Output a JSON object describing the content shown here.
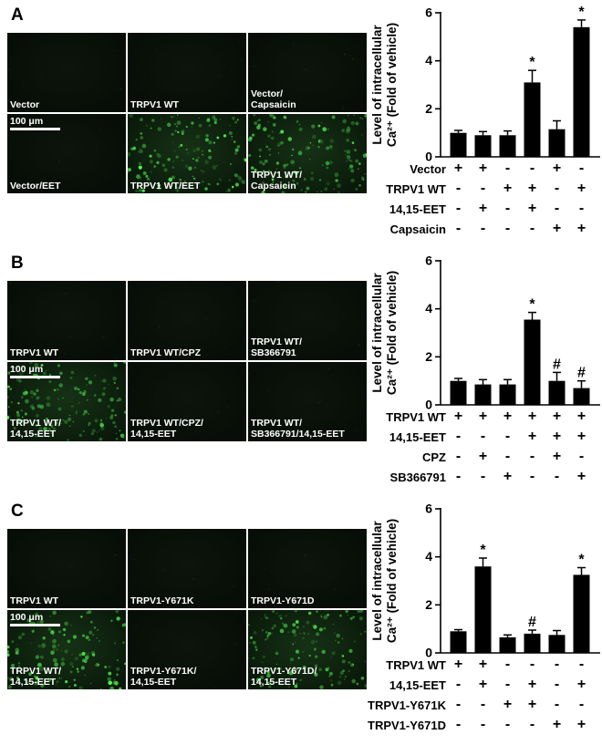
{
  "figure": {
    "panels": [
      {
        "letter": "A",
        "micrographs": [
          {
            "label": "Vector",
            "bright": false
          },
          {
            "label": "TRPV1 WT",
            "bright": false
          },
          {
            "label": "Vector/\nCapsaicin",
            "bright": false
          },
          {
            "label": "Vector/EET",
            "bright": false,
            "scalebar": "100 μm"
          },
          {
            "label": "TRPV1 WT/EET",
            "bright": true
          },
          {
            "label": "TRPV1 WT/\nCapsaicin",
            "bright": true
          }
        ],
        "chart_data": {
          "type": "bar",
          "ylabel_lines": [
            "Level of intracellular",
            "Ca²⁺ (Fold of vehicle)"
          ],
          "ylim": [
            0,
            6
          ],
          "yticks": [
            0,
            2,
            4,
            6
          ],
          "values": [
            1.0,
            0.9,
            0.9,
            3.1,
            1.15,
            5.4
          ],
          "errors": [
            0.1,
            0.15,
            0.18,
            0.5,
            0.35,
            0.3
          ],
          "sig": [
            "",
            "",
            "",
            "*",
            "",
            "*"
          ],
          "bar_color": "#000000"
        },
        "matrix": [
          {
            "label": "Vector",
            "signs": [
              "+",
              "+",
              "-",
              "-",
              "+",
              "-"
            ]
          },
          {
            "label": "TRPV1 WT",
            "signs": [
              "-",
              "-",
              "+",
              "+",
              "-",
              "+"
            ]
          },
          {
            "label": "14,15-EET",
            "signs": [
              "-",
              "+",
              "-",
              "+",
              "-",
              "-"
            ]
          },
          {
            "label": "Capsaicin",
            "signs": [
              "-",
              "-",
              "-",
              "-",
              "+",
              "+"
            ]
          }
        ]
      },
      {
        "letter": "B",
        "micrographs": [
          {
            "label": "TRPV1 WT",
            "bright": false
          },
          {
            "label": "TRPV1 WT/CPZ",
            "bright": false
          },
          {
            "label": "TRPV1 WT/\nSB366791",
            "bright": false
          },
          {
            "label": "TRPV1 WT/\n14,15-EET",
            "bright": true,
            "scalebar": "100 μm"
          },
          {
            "label": "TRPV1 WT/CPZ/\n14,15-EET",
            "bright": false
          },
          {
            "label": "TRPV1 WT/\nSB366791/14,15-EET",
            "bright": false
          }
        ],
        "chart_data": {
          "type": "bar",
          "ylabel_lines": [
            "Level of intracellular",
            "Ca²⁺ (Fold of vehicle)"
          ],
          "ylim": [
            0,
            6
          ],
          "yticks": [
            0,
            2,
            4,
            6
          ],
          "values": [
            1.0,
            0.85,
            0.85,
            3.55,
            1.0,
            0.7
          ],
          "errors": [
            0.1,
            0.2,
            0.2,
            0.3,
            0.35,
            0.3
          ],
          "sig": [
            "",
            "",
            "",
            "*",
            "#",
            "#"
          ],
          "bar_color": "#000000"
        },
        "matrix": [
          {
            "label": "TRPV1 WT",
            "signs": [
              "+",
              "+",
              "+",
              "+",
              "+",
              "+"
            ]
          },
          {
            "label": "14,15-EET",
            "signs": [
              "-",
              "-",
              "-",
              "+",
              "+",
              "+"
            ]
          },
          {
            "label": "CPZ",
            "signs": [
              "-",
              "+",
              "-",
              "-",
              "+",
              "-"
            ]
          },
          {
            "label": "SB366791",
            "signs": [
              "-",
              "-",
              "+",
              "-",
              "-",
              "+"
            ]
          }
        ]
      },
      {
        "letter": "C",
        "micrographs": [
          {
            "label": "TRPV1 WT",
            "bright": false
          },
          {
            "label": "TRPV1-Y671K",
            "bright": false
          },
          {
            "label": "TRPV1-Y671D",
            "bright": false
          },
          {
            "label": "TRPV1 WT/\n14,15-EET",
            "bright": true,
            "scalebar": "100 μm"
          },
          {
            "label": "TRPV1-Y671K/\n14,15-EET",
            "bright": false
          },
          {
            "label": "TRPV1-Y671D/\n14,15-EET",
            "bright": true
          }
        ],
        "chart_data": {
          "type": "bar",
          "ylabel_lines": [
            "Level of intracellular",
            "Ca²⁺ (Fold of vehicle)"
          ],
          "ylim": [
            0,
            6
          ],
          "yticks": [
            0,
            2,
            4,
            6
          ],
          "values": [
            0.9,
            3.6,
            0.65,
            0.8,
            0.75,
            3.25
          ],
          "errors": [
            0.07,
            0.35,
            0.1,
            0.15,
            0.18,
            0.3
          ],
          "sig": [
            "",
            "*",
            "",
            "#",
            "",
            "*"
          ],
          "bar_color": "#000000"
        },
        "matrix": [
          {
            "label": "TRPV1 WT",
            "signs": [
              "+",
              "+",
              "-",
              "-",
              "-",
              "-"
            ]
          },
          {
            "label": "14,15-EET",
            "signs": [
              "-",
              "+",
              "-",
              "+",
              "-",
              "+"
            ]
          },
          {
            "label": "TRPV1-Y671K",
            "signs": [
              "-",
              "-",
              "+",
              "+",
              "-",
              "-"
            ]
          },
          {
            "label": "TRPV1-Y671D",
            "signs": [
              "-",
              "-",
              "-",
              "-",
              "+",
              "+"
            ]
          }
        ]
      }
    ]
  }
}
